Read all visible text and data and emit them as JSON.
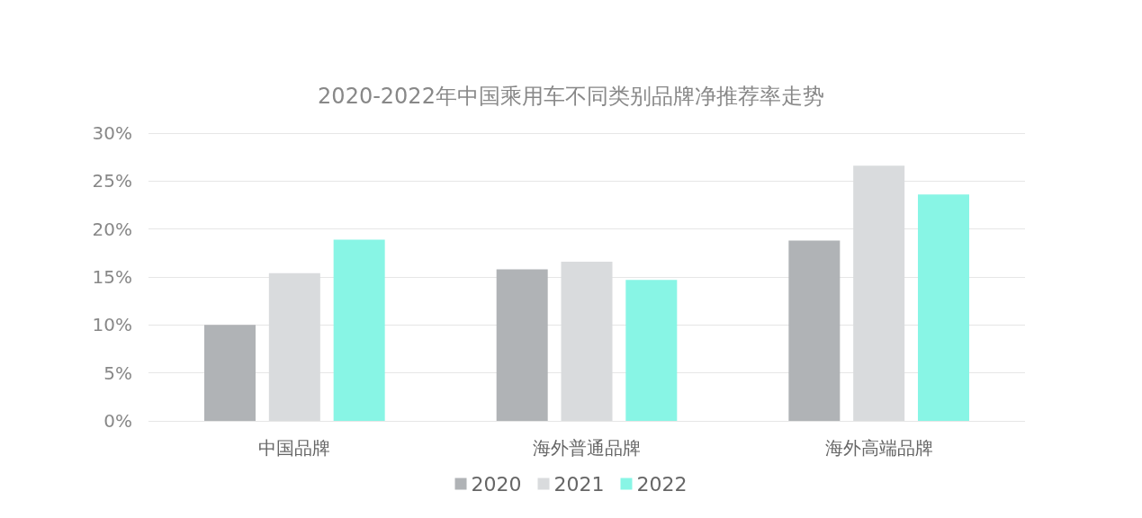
{
  "chart_data": {
    "type": "bar",
    "title": "2020-2022年中国乘用车不同类别品牌净推荐率走势",
    "categories": [
      "中国品牌",
      "海外普通品牌",
      "海外高端品牌"
    ],
    "series": [
      {
        "name": "2020",
        "color": "#b0b3b6",
        "values": [
          10,
          15.8,
          18.8
        ]
      },
      {
        "name": "2021",
        "color": "#d9dbdd",
        "values": [
          15.4,
          16.6,
          26.6
        ]
      },
      {
        "name": "2022",
        "color": "#88f5e5",
        "values": [
          18.9,
          14.7,
          23.6
        ]
      }
    ],
    "ylim": [
      0,
      30
    ],
    "yticks": [
      {
        "value": 0,
        "label": "0%"
      },
      {
        "value": 5,
        "label": "5%"
      },
      {
        "value": 10,
        "label": "10%"
      },
      {
        "value": 15,
        "label": "15%"
      },
      {
        "value": 20,
        "label": "20%"
      },
      {
        "value": 25,
        "label": "25%"
      },
      {
        "value": 30,
        "label": "30%"
      }
    ],
    "grid": "y",
    "legend": "bottom"
  }
}
